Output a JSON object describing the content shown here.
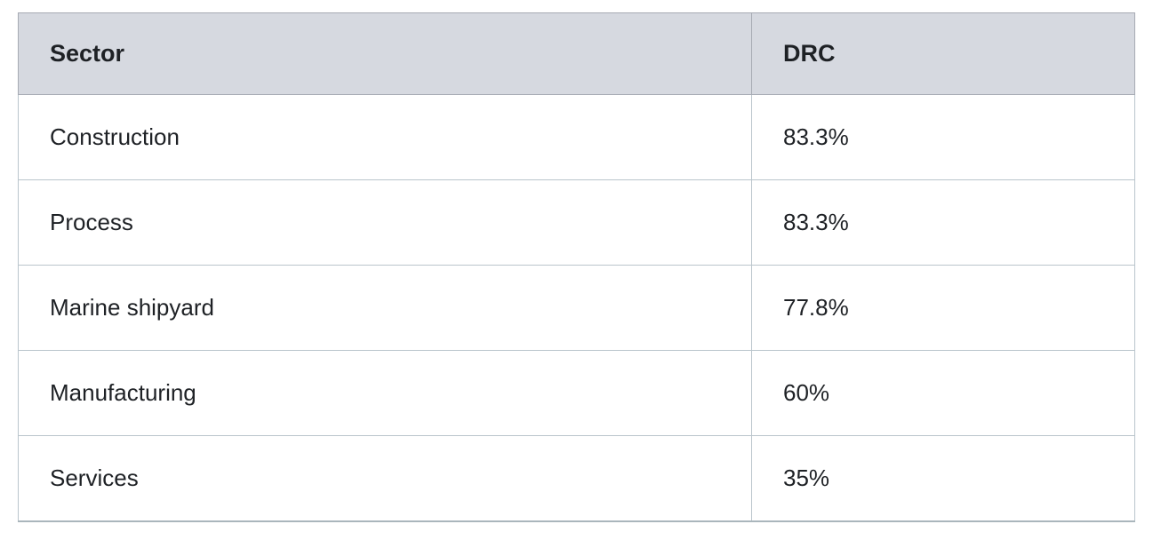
{
  "table": {
    "columns": [
      "Sector",
      "DRC"
    ],
    "rows": [
      {
        "sector": "Construction",
        "drc": "83.3%"
      },
      {
        "sector": "Process",
        "drc": "83.3%"
      },
      {
        "sector": "Marine shipyard",
        "drc": "77.8%"
      },
      {
        "sector": "Manufacturing",
        "drc": "60%"
      },
      {
        "sector": "Services",
        "drc": "35%"
      }
    ]
  },
  "colors": {
    "header_background": "#d6d9e0",
    "header_border": "#a6aab3",
    "body_border": "#bac5cc",
    "text": "#1e2125"
  }
}
